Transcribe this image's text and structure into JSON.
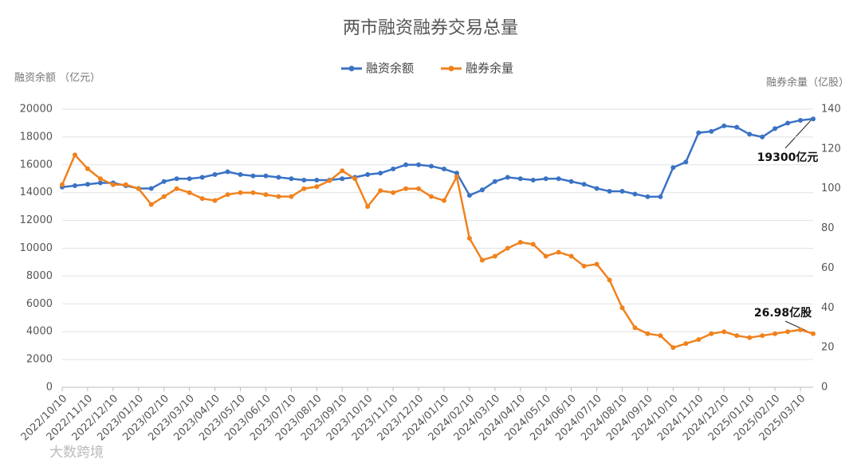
{
  "chart_data": {
    "type": "line",
    "title": "两市融资融券交易总量",
    "y_label": "融资余额 （亿元）",
    "y2_label": "融券余量（亿股）",
    "watermark": "大数跨境",
    "categories": [
      "2022/10/10",
      null,
      "2022/11/10",
      null,
      "2022/12/10",
      null,
      "2023/01/10",
      null,
      "2023/02/10",
      null,
      "2023/03/10",
      null,
      "2023/04/10",
      null,
      "2023/05/10",
      null,
      "2023/06/10",
      null,
      "2023/07/10",
      null,
      "2023/08/10",
      null,
      "2023/09/10",
      null,
      "2023/10/10",
      null,
      "2023/11/10",
      null,
      "2023/12/10",
      null,
      "2024/01/10",
      null,
      "2024/02/10",
      null,
      "2024/03/10",
      null,
      "2024/04/10",
      null,
      "2024/05/10",
      null,
      "2024/06/10",
      null,
      "2024/07/10",
      null,
      "2024/08/10",
      null,
      "2024/09/10",
      null,
      "2024/10/10",
      null,
      "2024/11/10",
      null,
      "2024/12/10",
      null,
      "2025/01/10",
      null,
      "2025/02/10",
      null,
      "2025/03/10",
      null
    ],
    "series": [
      {
        "name": "融资余额",
        "color": "#3a72c4",
        "values": [
          14400,
          14500,
          14600,
          14700,
          14700,
          14500,
          14300,
          14300,
          14800,
          15000,
          15000,
          15100,
          15300,
          15500,
          15300,
          15200,
          15200,
          15100,
          15000,
          14900,
          14900,
          14900,
          15000,
          15100,
          15300,
          15400,
          15700,
          16000,
          16000,
          15900,
          15700,
          15400,
          13800,
          14200,
          14800,
          15100,
          15000,
          14900,
          15000,
          15000,
          14800,
          14600,
          14300,
          14100,
          14100,
          13900,
          13700,
          13700,
          15800,
          16200,
          18300,
          18400,
          18800,
          18700,
          18200,
          18000,
          18600,
          19000,
          19200,
          19300
        ]
      },
      {
        "name": "融券余量",
        "color": "#f0821e",
        "axis": "y2",
        "values": [
          102,
          117,
          110,
          105,
          102,
          102,
          100,
          92,
          96,
          100,
          98,
          95,
          94,
          97,
          98,
          98,
          97,
          96,
          96,
          100,
          101,
          104,
          109,
          105,
          91,
          99,
          98,
          100,
          100,
          96,
          94,
          106,
          75,
          64,
          66,
          70,
          73,
          72,
          66,
          68,
          66,
          61,
          62,
          54,
          40,
          30,
          27,
          26,
          20,
          22,
          24,
          27,
          28,
          26,
          25,
          26,
          27,
          28,
          29,
          26.98
        ]
      }
    ],
    "annotations": [
      "19300亿元",
      "26.98亿股"
    ],
    "ylim": [
      0,
      20000
    ],
    "yticks": [
      0,
      2000,
      4000,
      6000,
      8000,
      10000,
      12000,
      14000,
      16000,
      18000,
      20000
    ],
    "y2lim": [
      0,
      140
    ],
    "y2ticks": [
      0,
      20,
      40,
      60,
      80,
      100,
      120,
      140
    ],
    "grid": true,
    "legend": "top"
  }
}
